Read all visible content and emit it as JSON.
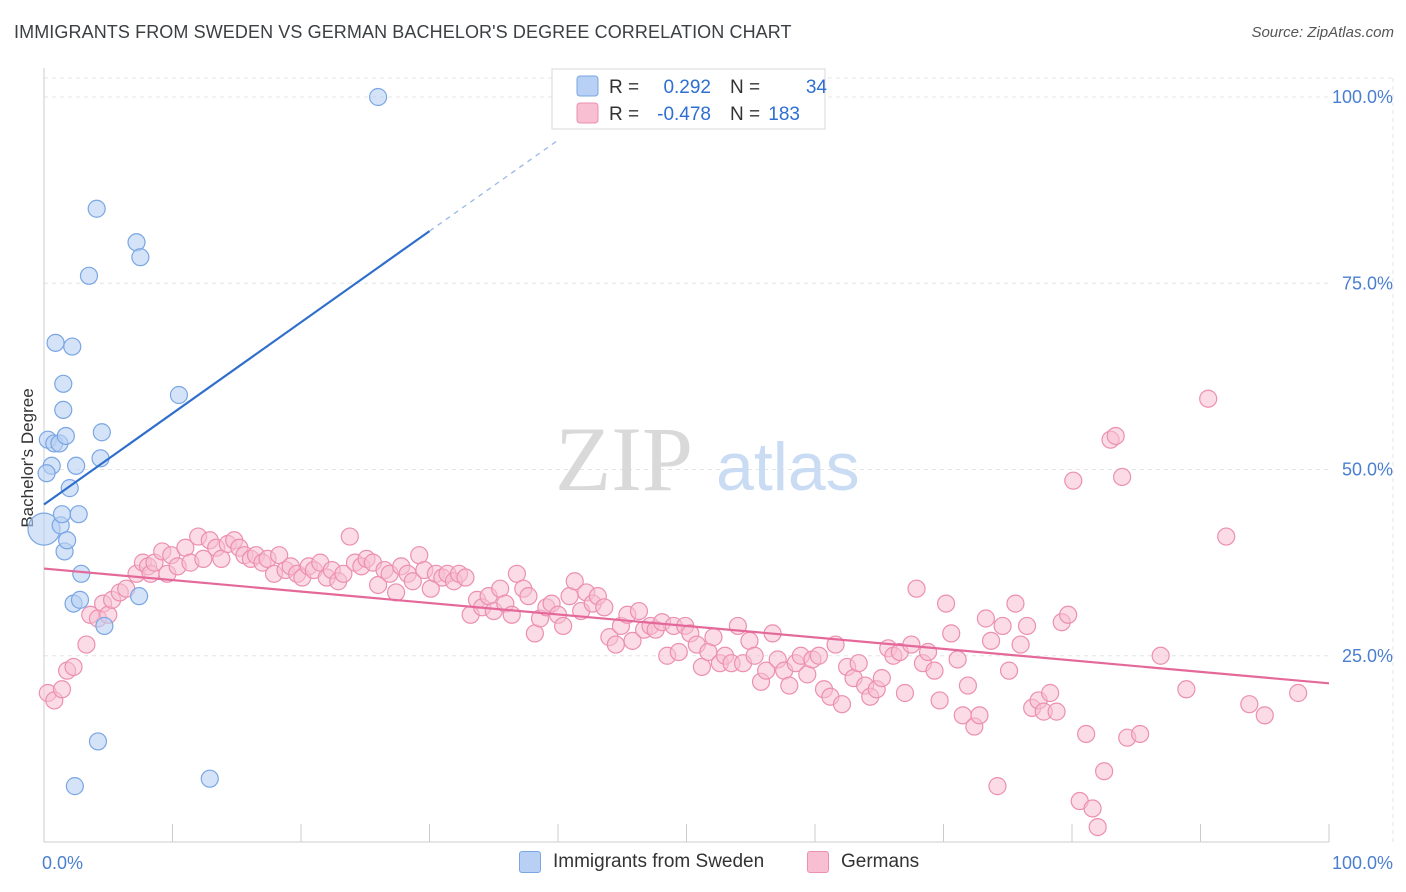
{
  "title": "IMMIGRANTS FROM SWEDEN VS GERMAN BACHELOR'S DEGREE CORRELATION CHART",
  "source": "Source: ZipAtlas.com",
  "watermark": {
    "part1": "ZIP",
    "part2": "atlas"
  },
  "colors": {
    "blue_fill": "#b7d0f3",
    "blue_stroke": "#7aa6e3",
    "blue_line": "#2f6fcb",
    "pink_fill": "#f7bfd1",
    "pink_stroke": "#ec8fb0",
    "pink_line": "#e4699a",
    "tick_text": "#4a7fd0",
    "grid": "#e4e4e4"
  },
  "legend": {
    "rows": [
      {
        "r_label": "R =",
        "r_value": "0.292",
        "n_label": "N =",
        "n_value": "34"
      },
      {
        "r_label": "R =",
        "r_value": "-0.478",
        "n_label": "N =",
        "n_value": "183"
      }
    ]
  },
  "bottom_legend": [
    "Immigrants from Sweden",
    "Germans"
  ],
  "chart_data": {
    "type": "scatter",
    "title": "IMMIGRANTS FROM SWEDEN VS GERMAN BACHELOR'S DEGREE CORRELATION CHART",
    "xlabel": "",
    "ylabel": "Bachelor's Degree",
    "xlim": [
      0,
      100
    ],
    "ylim": [
      0,
      100
    ],
    "x_tick_labels": [
      "0.0%",
      "100.0%"
    ],
    "y_ticks": [
      25,
      50,
      75,
      100
    ],
    "y_tick_labels": [
      "25.0%",
      "50.0%",
      "75.0%",
      "100.0%"
    ],
    "grid": true,
    "legend_position": "top-center",
    "series": [
      {
        "name": "Immigrants from Sweden",
        "R": 0.292,
        "N": 34,
        "trend": {
          "x0": 0,
          "y0": 45.3,
          "x1": 30,
          "y1": 82,
          "dashed_to_x": 40,
          "dashed_to_y": 94.2
        },
        "points": [
          [
            0.0,
            42.0
          ],
          [
            0.3,
            54.0
          ],
          [
            0.6,
            50.5
          ],
          [
            0.8,
            53.5
          ],
          [
            0.9,
            67.0
          ],
          [
            1.2,
            53.5
          ],
          [
            1.3,
            42.5
          ],
          [
            1.4,
            44.0
          ],
          [
            1.5,
            61.5
          ],
          [
            1.5,
            58.0
          ],
          [
            1.6,
            39.0
          ],
          [
            1.7,
            54.5
          ],
          [
            1.8,
            40.5
          ],
          [
            2.0,
            47.5
          ],
          [
            2.2,
            66.5
          ],
          [
            2.3,
            32.0
          ],
          [
            2.4,
            7.5
          ],
          [
            2.5,
            50.5
          ],
          [
            2.7,
            44.0
          ],
          [
            2.8,
            32.5
          ],
          [
            2.9,
            36.0
          ],
          [
            3.5,
            76.0
          ],
          [
            4.1,
            85.0
          ],
          [
            4.2,
            13.5
          ],
          [
            4.4,
            51.5
          ],
          [
            4.5,
            55.0
          ],
          [
            4.7,
            29.0
          ],
          [
            7.2,
            80.5
          ],
          [
            7.4,
            33.0
          ],
          [
            7.5,
            78.5
          ],
          [
            10.5,
            60.0
          ],
          [
            12.9,
            8.5
          ],
          [
            26.0,
            100.0
          ],
          [
            0.2,
            49.5
          ]
        ]
      },
      {
        "name": "Germans",
        "R": -0.478,
        "N": 183,
        "trend": {
          "x0": 0,
          "y0": 36.7,
          "x1": 100,
          "y1": 21.3
        },
        "points": [
          [
            0.3,
            20.0
          ],
          [
            0.8,
            19.0
          ],
          [
            1.4,
            20.5
          ],
          [
            1.8,
            23.0
          ],
          [
            2.3,
            23.5
          ],
          [
            3.3,
            26.5
          ],
          [
            3.6,
            30.5
          ],
          [
            4.2,
            30.0
          ],
          [
            4.6,
            32.0
          ],
          [
            5.0,
            30.5
          ],
          [
            5.3,
            32.5
          ],
          [
            5.9,
            33.5
          ],
          [
            6.4,
            34.0
          ],
          [
            7.2,
            36.0
          ],
          [
            7.7,
            37.5
          ],
          [
            8.1,
            37.0
          ],
          [
            8.3,
            36.0
          ],
          [
            8.6,
            37.5
          ],
          [
            9.2,
            39.0
          ],
          [
            9.6,
            36.0
          ],
          [
            9.9,
            38.5
          ],
          [
            10.4,
            37.0
          ],
          [
            11.0,
            39.5
          ],
          [
            11.4,
            37.5
          ],
          [
            12.0,
            41.0
          ],
          [
            12.4,
            38.0
          ],
          [
            12.9,
            40.5
          ],
          [
            13.4,
            39.5
          ],
          [
            13.8,
            38.0
          ],
          [
            14.3,
            40.0
          ],
          [
            14.8,
            40.5
          ],
          [
            15.2,
            39.5
          ],
          [
            15.6,
            38.5
          ],
          [
            16.1,
            38.0
          ],
          [
            16.5,
            38.5
          ],
          [
            17.0,
            37.5
          ],
          [
            17.4,
            38.0
          ],
          [
            17.9,
            36.0
          ],
          [
            18.3,
            38.5
          ],
          [
            18.8,
            36.5
          ],
          [
            19.2,
            37.0
          ],
          [
            19.7,
            36.0
          ],
          [
            20.1,
            35.5
          ],
          [
            20.6,
            37.0
          ],
          [
            21.0,
            36.5
          ],
          [
            21.5,
            37.5
          ],
          [
            22.0,
            35.5
          ],
          [
            22.4,
            36.5
          ],
          [
            22.9,
            35.0
          ],
          [
            23.3,
            36.0
          ],
          [
            23.8,
            41.0
          ],
          [
            24.2,
            37.5
          ],
          [
            24.7,
            37.0
          ],
          [
            25.1,
            38.0
          ],
          [
            25.6,
            37.5
          ],
          [
            26.0,
            34.5
          ],
          [
            26.5,
            36.5
          ],
          [
            26.9,
            36.0
          ],
          [
            27.4,
            33.5
          ],
          [
            27.8,
            37.0
          ],
          [
            28.3,
            36.0
          ],
          [
            28.7,
            35.0
          ],
          [
            29.2,
            38.5
          ],
          [
            29.6,
            36.5
          ],
          [
            30.1,
            34.0
          ],
          [
            30.5,
            36.0
          ],
          [
            31.0,
            35.5
          ],
          [
            31.4,
            36.0
          ],
          [
            31.9,
            35.0
          ],
          [
            32.3,
            36.0
          ],
          [
            32.8,
            35.5
          ],
          [
            33.2,
            30.5
          ],
          [
            33.7,
            32.5
          ],
          [
            34.1,
            31.5
          ],
          [
            34.6,
            33.0
          ],
          [
            35.0,
            31.0
          ],
          [
            35.5,
            34.0
          ],
          [
            35.9,
            32.0
          ],
          [
            36.4,
            30.5
          ],
          [
            36.8,
            36.0
          ],
          [
            37.3,
            34.0
          ],
          [
            37.7,
            33.0
          ],
          [
            38.2,
            28.0
          ],
          [
            38.6,
            30.0
          ],
          [
            39.1,
            31.5
          ],
          [
            39.5,
            32.0
          ],
          [
            40.0,
            30.5
          ],
          [
            40.4,
            29.0
          ],
          [
            40.9,
            33.0
          ],
          [
            41.3,
            35.0
          ],
          [
            41.8,
            31.0
          ],
          [
            42.2,
            33.5
          ],
          [
            42.7,
            32.0
          ],
          [
            43.1,
            33.0
          ],
          [
            43.6,
            31.5
          ],
          [
            44.0,
            27.5
          ],
          [
            44.5,
            26.5
          ],
          [
            44.9,
            29.0
          ],
          [
            45.4,
            30.5
          ],
          [
            45.8,
            27.0
          ],
          [
            46.3,
            31.0
          ],
          [
            46.7,
            28.5
          ],
          [
            47.2,
            29.0
          ],
          [
            47.6,
            28.5
          ],
          [
            48.1,
            29.5
          ],
          [
            48.5,
            25.0
          ],
          [
            49.0,
            29.0
          ],
          [
            49.4,
            25.5
          ],
          [
            49.9,
            29.0
          ],
          [
            50.3,
            28.0
          ],
          [
            50.8,
            26.5
          ],
          [
            51.2,
            23.5
          ],
          [
            51.7,
            25.5
          ],
          [
            52.1,
            27.5
          ],
          [
            52.6,
            24.0
          ],
          [
            53.0,
            25.0
          ],
          [
            53.5,
            24.0
          ],
          [
            54.0,
            29.0
          ],
          [
            54.4,
            24.0
          ],
          [
            54.9,
            27.0
          ],
          [
            55.3,
            25.0
          ],
          [
            55.8,
            21.5
          ],
          [
            56.2,
            23.0
          ],
          [
            56.7,
            28.0
          ],
          [
            57.1,
            24.5
          ],
          [
            57.6,
            23.0
          ],
          [
            58.0,
            21.0
          ],
          [
            58.5,
            24.0
          ],
          [
            58.9,
            25.0
          ],
          [
            59.4,
            22.5
          ],
          [
            59.8,
            24.5
          ],
          [
            60.3,
            25.0
          ],
          [
            60.7,
            20.5
          ],
          [
            61.2,
            19.5
          ],
          [
            61.6,
            26.5
          ],
          [
            62.1,
            18.5
          ],
          [
            62.5,
            23.5
          ],
          [
            63.0,
            22.0
          ],
          [
            63.4,
            24.0
          ],
          [
            63.9,
            21.0
          ],
          [
            64.3,
            19.5
          ],
          [
            64.8,
            20.5
          ],
          [
            65.2,
            22.0
          ],
          [
            65.7,
            26.0
          ],
          [
            66.1,
            25.0
          ],
          [
            66.6,
            25.5
          ],
          [
            67.0,
            20.0
          ],
          [
            67.5,
            26.5
          ],
          [
            67.9,
            34.0
          ],
          [
            68.4,
            24.0
          ],
          [
            68.8,
            25.5
          ],
          [
            69.3,
            23.0
          ],
          [
            69.7,
            19.0
          ],
          [
            70.2,
            32.0
          ],
          [
            70.6,
            28.0
          ],
          [
            71.1,
            24.5
          ],
          [
            71.5,
            17.0
          ],
          [
            71.9,
            21.0
          ],
          [
            72.4,
            15.5
          ],
          [
            72.8,
            17.0
          ],
          [
            73.3,
            30.0
          ],
          [
            73.7,
            27.0
          ],
          [
            74.2,
            7.5
          ],
          [
            74.6,
            29.0
          ],
          [
            75.1,
            23.0
          ],
          [
            75.6,
            32.0
          ],
          [
            76.0,
            26.5
          ],
          [
            76.5,
            29.0
          ],
          [
            76.9,
            18.0
          ],
          [
            77.4,
            19.0
          ],
          [
            77.8,
            17.5
          ],
          [
            78.3,
            20.0
          ],
          [
            78.8,
            17.5
          ],
          [
            79.2,
            29.5
          ],
          [
            79.7,
            30.5
          ],
          [
            80.1,
            48.5
          ],
          [
            80.6,
            5.5
          ],
          [
            81.1,
            14.5
          ],
          [
            81.6,
            4.5
          ],
          [
            82.0,
            2.0
          ],
          [
            82.5,
            9.5
          ],
          [
            83.0,
            54.0
          ],
          [
            83.4,
            54.5
          ],
          [
            83.9,
            49.0
          ],
          [
            84.3,
            14.0
          ],
          [
            85.3,
            14.5
          ],
          [
            86.9,
            25.0
          ],
          [
            88.9,
            20.5
          ],
          [
            90.6,
            59.5
          ],
          [
            92.0,
            41.0
          ],
          [
            93.8,
            18.5
          ],
          [
            95.0,
            17.0
          ],
          [
            97.6,
            20.0
          ]
        ]
      }
    ]
  }
}
